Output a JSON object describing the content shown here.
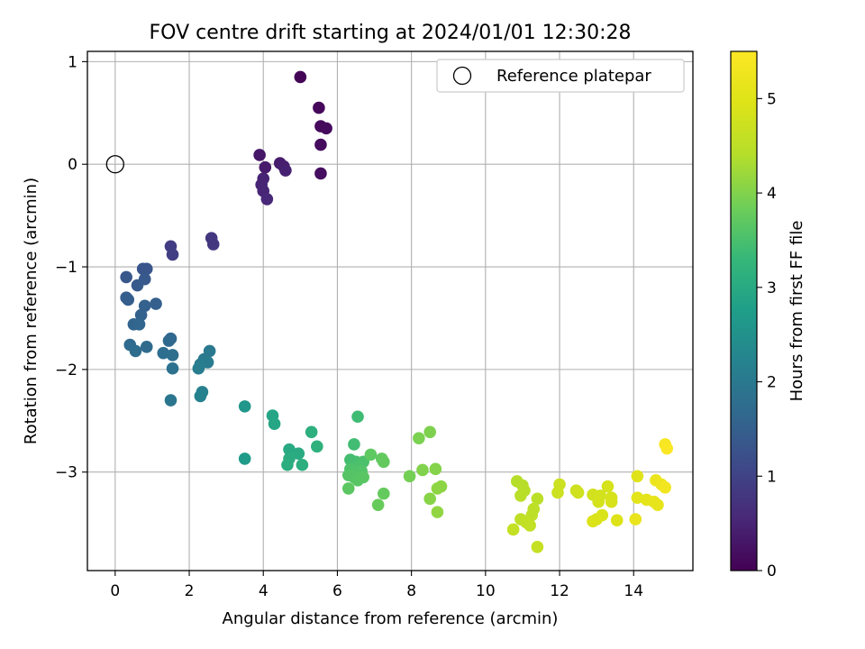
{
  "chart_data": {
    "type": "scatter",
    "title": "FOV centre drift starting at 2024/01/01 12:30:28",
    "xlabel": "Angular distance from reference (arcmin)",
    "ylabel": "Rotation from reference (arcmin)",
    "xlim": [
      -0.75,
      15.6
    ],
    "ylim": [
      -3.96,
      1.1
    ],
    "xticks": [
      0,
      2,
      4,
      6,
      8,
      10,
      12,
      14
    ],
    "yticks": [
      1,
      0,
      -1,
      -2,
      -3
    ],
    "xtick_labels": [
      "0",
      "2",
      "4",
      "6",
      "8",
      "10",
      "12",
      "14"
    ],
    "ytick_labels": [
      "1",
      "0",
      "−1",
      "−2",
      "−3"
    ],
    "grid": true,
    "legend": {
      "position": "top-right",
      "entries": [
        {
          "label": "Reference platepar",
          "marker": "open-circle"
        }
      ]
    },
    "reference_point": {
      "x": 0,
      "y": 0
    },
    "colorbar": {
      "label": "Hours from first FF file",
      "colormap": "viridis",
      "range": [
        0,
        5.5
      ],
      "ticks": [
        0,
        1,
        2,
        3,
        4,
        5
      ],
      "tick_labels": [
        "0",
        "1",
        "2",
        "3",
        "4",
        "5"
      ]
    },
    "points": [
      {
        "x": 5.0,
        "y": 0.85,
        "c": 0.05
      },
      {
        "x": 5.5,
        "y": 0.55,
        "c": 0.1
      },
      {
        "x": 5.55,
        "y": 0.37,
        "c": 0.12
      },
      {
        "x": 5.7,
        "y": 0.35,
        "c": 0.14
      },
      {
        "x": 5.55,
        "y": 0.19,
        "c": 0.16
      },
      {
        "x": 5.55,
        "y": -0.09,
        "c": 0.18
      },
      {
        "x": 3.9,
        "y": 0.09,
        "c": 0.3
      },
      {
        "x": 4.05,
        "y": -0.03,
        "c": 0.35
      },
      {
        "x": 4.45,
        "y": 0.01,
        "c": 0.4
      },
      {
        "x": 4.55,
        "y": -0.02,
        "c": 0.42
      },
      {
        "x": 4.6,
        "y": -0.06,
        "c": 0.45
      },
      {
        "x": 4.0,
        "y": -0.14,
        "c": 0.48
      },
      {
        "x": 3.95,
        "y": -0.2,
        "c": 0.5
      },
      {
        "x": 4.0,
        "y": -0.26,
        "c": 0.52
      },
      {
        "x": 4.1,
        "y": -0.34,
        "c": 0.55
      },
      {
        "x": 2.6,
        "y": -0.72,
        "c": 0.8
      },
      {
        "x": 2.65,
        "y": -0.78,
        "c": 0.82
      },
      {
        "x": 1.5,
        "y": -0.8,
        "c": 0.9
      },
      {
        "x": 1.55,
        "y": -0.88,
        "c": 0.92
      },
      {
        "x": 0.75,
        "y": -1.02,
        "c": 1.3
      },
      {
        "x": 0.85,
        "y": -1.02,
        "c": 1.32
      },
      {
        "x": 0.3,
        "y": -1.1,
        "c": 1.35
      },
      {
        "x": 0.8,
        "y": -1.12,
        "c": 1.38
      },
      {
        "x": 0.6,
        "y": -1.18,
        "c": 1.4
      },
      {
        "x": 0.3,
        "y": -1.3,
        "c": 1.45
      },
      {
        "x": 0.35,
        "y": -1.32,
        "c": 1.48
      },
      {
        "x": 1.1,
        "y": -1.36,
        "c": 1.5
      },
      {
        "x": 0.8,
        "y": -1.38,
        "c": 1.52
      },
      {
        "x": 0.7,
        "y": -1.47,
        "c": 1.55
      },
      {
        "x": 0.5,
        "y": -1.56,
        "c": 1.6
      },
      {
        "x": 0.65,
        "y": -1.56,
        "c": 1.62
      },
      {
        "x": 1.5,
        "y": -1.7,
        "c": 1.65
      },
      {
        "x": 1.45,
        "y": -1.72,
        "c": 1.68
      },
      {
        "x": 0.4,
        "y": -1.76,
        "c": 1.7
      },
      {
        "x": 0.85,
        "y": -1.78,
        "c": 1.72
      },
      {
        "x": 0.55,
        "y": -1.82,
        "c": 1.75
      },
      {
        "x": 1.3,
        "y": -1.84,
        "c": 1.78
      },
      {
        "x": 1.55,
        "y": -1.86,
        "c": 1.8
      },
      {
        "x": 1.55,
        "y": -1.99,
        "c": 1.85
      },
      {
        "x": 1.5,
        "y": -2.3,
        "c": 1.95
      },
      {
        "x": 2.55,
        "y": -1.82,
        "c": 2.0
      },
      {
        "x": 2.4,
        "y": -1.9,
        "c": 2.02
      },
      {
        "x": 2.5,
        "y": -1.93,
        "c": 2.05
      },
      {
        "x": 2.3,
        "y": -1.95,
        "c": 2.08
      },
      {
        "x": 2.25,
        "y": -1.99,
        "c": 2.1
      },
      {
        "x": 2.35,
        "y": -2.22,
        "c": 2.15
      },
      {
        "x": 2.3,
        "y": -2.26,
        "c": 2.18
      },
      {
        "x": 3.5,
        "y": -2.36,
        "c": 2.6
      },
      {
        "x": 3.5,
        "y": -2.87,
        "c": 2.7
      },
      {
        "x": 4.25,
        "y": -2.45,
        "c": 2.9
      },
      {
        "x": 4.3,
        "y": -2.53,
        "c": 2.92
      },
      {
        "x": 4.7,
        "y": -2.78,
        "c": 3.0
      },
      {
        "x": 4.95,
        "y": -2.82,
        "c": 3.02
      },
      {
        "x": 4.7,
        "y": -2.87,
        "c": 3.05
      },
      {
        "x": 4.65,
        "y": -2.93,
        "c": 3.08
      },
      {
        "x": 5.05,
        "y": -2.93,
        "c": 3.1
      },
      {
        "x": 5.3,
        "y": -2.61,
        "c": 3.12
      },
      {
        "x": 5.45,
        "y": -2.75,
        "c": 3.15
      },
      {
        "x": 6.55,
        "y": -2.46,
        "c": 3.4
      },
      {
        "x": 6.45,
        "y": -2.73,
        "c": 3.42
      },
      {
        "x": 6.35,
        "y": -2.88,
        "c": 3.45
      },
      {
        "x": 6.5,
        "y": -2.9,
        "c": 3.47
      },
      {
        "x": 6.6,
        "y": -2.93,
        "c": 3.5
      },
      {
        "x": 6.7,
        "y": -2.9,
        "c": 3.52
      },
      {
        "x": 6.35,
        "y": -2.97,
        "c": 3.55
      },
      {
        "x": 6.5,
        "y": -3.0,
        "c": 3.57
      },
      {
        "x": 6.65,
        "y": -2.99,
        "c": 3.58
      },
      {
        "x": 6.3,
        "y": -3.03,
        "c": 3.6
      },
      {
        "x": 6.45,
        "y": -3.05,
        "c": 3.62
      },
      {
        "x": 6.55,
        "y": -3.08,
        "c": 3.64
      },
      {
        "x": 6.7,
        "y": -3.05,
        "c": 3.66
      },
      {
        "x": 6.3,
        "y": -3.16,
        "c": 3.68
      },
      {
        "x": 6.9,
        "y": -2.83,
        "c": 3.7
      },
      {
        "x": 7.2,
        "y": -2.87,
        "c": 3.72
      },
      {
        "x": 7.25,
        "y": -2.9,
        "c": 3.74
      },
      {
        "x": 7.25,
        "y": -3.21,
        "c": 3.76
      },
      {
        "x": 7.1,
        "y": -3.32,
        "c": 3.78
      },
      {
        "x": 7.95,
        "y": -3.04,
        "c": 3.9
      },
      {
        "x": 8.2,
        "y": -2.67,
        "c": 3.95
      },
      {
        "x": 8.5,
        "y": -2.61,
        "c": 3.97
      },
      {
        "x": 8.3,
        "y": -2.98,
        "c": 4.0
      },
      {
        "x": 8.65,
        "y": -2.97,
        "c": 4.02
      },
      {
        "x": 8.5,
        "y": -3.26,
        "c": 4.05
      },
      {
        "x": 8.8,
        "y": -3.14,
        "c": 4.08
      },
      {
        "x": 8.7,
        "y": -3.16,
        "c": 4.1
      },
      {
        "x": 8.7,
        "y": -3.39,
        "c": 4.12
      },
      {
        "x": 10.85,
        "y": -3.09,
        "c": 4.4
      },
      {
        "x": 11.0,
        "y": -3.13,
        "c": 4.42
      },
      {
        "x": 11.05,
        "y": -3.18,
        "c": 4.44
      },
      {
        "x": 10.95,
        "y": -3.23,
        "c": 4.46
      },
      {
        "x": 11.4,
        "y": -3.26,
        "c": 4.48
      },
      {
        "x": 11.3,
        "y": -3.36,
        "c": 4.5
      },
      {
        "x": 11.25,
        "y": -3.42,
        "c": 4.52
      },
      {
        "x": 10.95,
        "y": -3.46,
        "c": 4.54
      },
      {
        "x": 11.1,
        "y": -3.49,
        "c": 4.56
      },
      {
        "x": 11.2,
        "y": -3.52,
        "c": 4.58
      },
      {
        "x": 10.75,
        "y": -3.56,
        "c": 4.6
      },
      {
        "x": 11.4,
        "y": -3.73,
        "c": 4.62
      },
      {
        "x": 12.0,
        "y": -3.12,
        "c": 4.7
      },
      {
        "x": 11.95,
        "y": -3.2,
        "c": 4.72
      },
      {
        "x": 12.45,
        "y": -3.18,
        "c": 4.74
      },
      {
        "x": 12.5,
        "y": -3.2,
        "c": 4.76
      },
      {
        "x": 12.9,
        "y": -3.22,
        "c": 4.78
      },
      {
        "x": 13.1,
        "y": -3.23,
        "c": 4.8
      },
      {
        "x": 13.05,
        "y": -3.29,
        "c": 4.82
      },
      {
        "x": 13.3,
        "y": -3.14,
        "c": 4.84
      },
      {
        "x": 13.4,
        "y": -3.25,
        "c": 4.86
      },
      {
        "x": 13.4,
        "y": -3.29,
        "c": 4.88
      },
      {
        "x": 13.15,
        "y": -3.42,
        "c": 4.9
      },
      {
        "x": 13.0,
        "y": -3.46,
        "c": 4.92
      },
      {
        "x": 12.9,
        "y": -3.48,
        "c": 4.94
      },
      {
        "x": 13.55,
        "y": -3.47,
        "c": 4.96
      },
      {
        "x": 14.1,
        "y": -3.04,
        "c": 5.0
      },
      {
        "x": 14.1,
        "y": -3.25,
        "c": 5.05
      },
      {
        "x": 14.35,
        "y": -3.27,
        "c": 5.08
      },
      {
        "x": 14.55,
        "y": -3.29,
        "c": 5.1
      },
      {
        "x": 14.65,
        "y": -3.32,
        "c": 5.12
      },
      {
        "x": 14.05,
        "y": -3.46,
        "c": 5.15
      },
      {
        "x": 14.6,
        "y": -3.08,
        "c": 5.2
      },
      {
        "x": 14.75,
        "y": -3.12,
        "c": 5.25
      },
      {
        "x": 14.85,
        "y": -3.15,
        "c": 5.3
      },
      {
        "x": 14.85,
        "y": -2.73,
        "c": 5.4
      },
      {
        "x": 14.9,
        "y": -2.77,
        "c": 5.45
      }
    ]
  }
}
